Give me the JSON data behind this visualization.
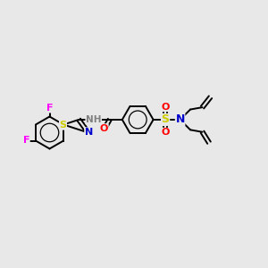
{
  "bg_color": "#e8e8e8",
  "F_color": "#ff00ff",
  "N_color": "#0000cd",
  "O_color": "#ff0000",
  "S_color": "#cccc00",
  "H_color": "#808080",
  "bond_color": "#000000",
  "figure_size": [
    3.0,
    3.0
  ],
  "dpi": 100,
  "xlim": [
    0,
    10
  ],
  "ylim": [
    0,
    10
  ]
}
